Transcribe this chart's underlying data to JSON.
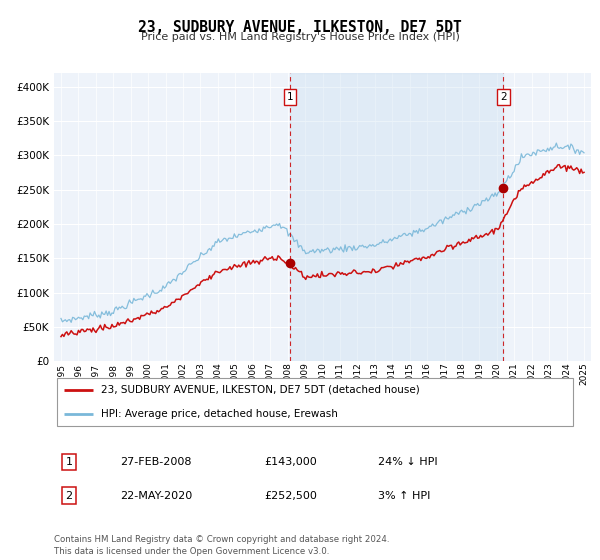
{
  "title": "23, SUDBURY AVENUE, ILKESTON, DE7 5DT",
  "subtitle": "Price paid vs. HM Land Registry's House Price Index (HPI)",
  "legend_line1": "23, SUDBURY AVENUE, ILKESTON, DE7 5DT (detached house)",
  "legend_line2": "HPI: Average price, detached house, Erewash",
  "annotation1_label": "1",
  "annotation1_date": "27-FEB-2008",
  "annotation1_price": "£143,000",
  "annotation1_hpi": "24% ↓ HPI",
  "annotation2_label": "2",
  "annotation2_date": "22-MAY-2020",
  "annotation2_price": "£252,500",
  "annotation2_hpi": "3% ↑ HPI",
  "footer": "Contains HM Land Registry data © Crown copyright and database right 2024.\nThis data is licensed under the Open Government Licence v3.0.",
  "hpi_color": "#7ab8d9",
  "price_color": "#cc1111",
  "vline_color": "#cc1111",
  "shade_color": "#ddeeff",
  "point_color": "#aa0000",
  "grid_color": "#cccccc",
  "bg_color": "#eef3fa",
  "ylim": [
    0,
    420000
  ],
  "yticks": [
    0,
    50000,
    100000,
    150000,
    200000,
    250000,
    300000,
    350000,
    400000
  ],
  "sale1_x": 2008.125,
  "sale1_y": 143000,
  "sale2_x": 2020.375,
  "sale2_y": 252500,
  "xmin": 1994.6,
  "xmax": 2025.4
}
